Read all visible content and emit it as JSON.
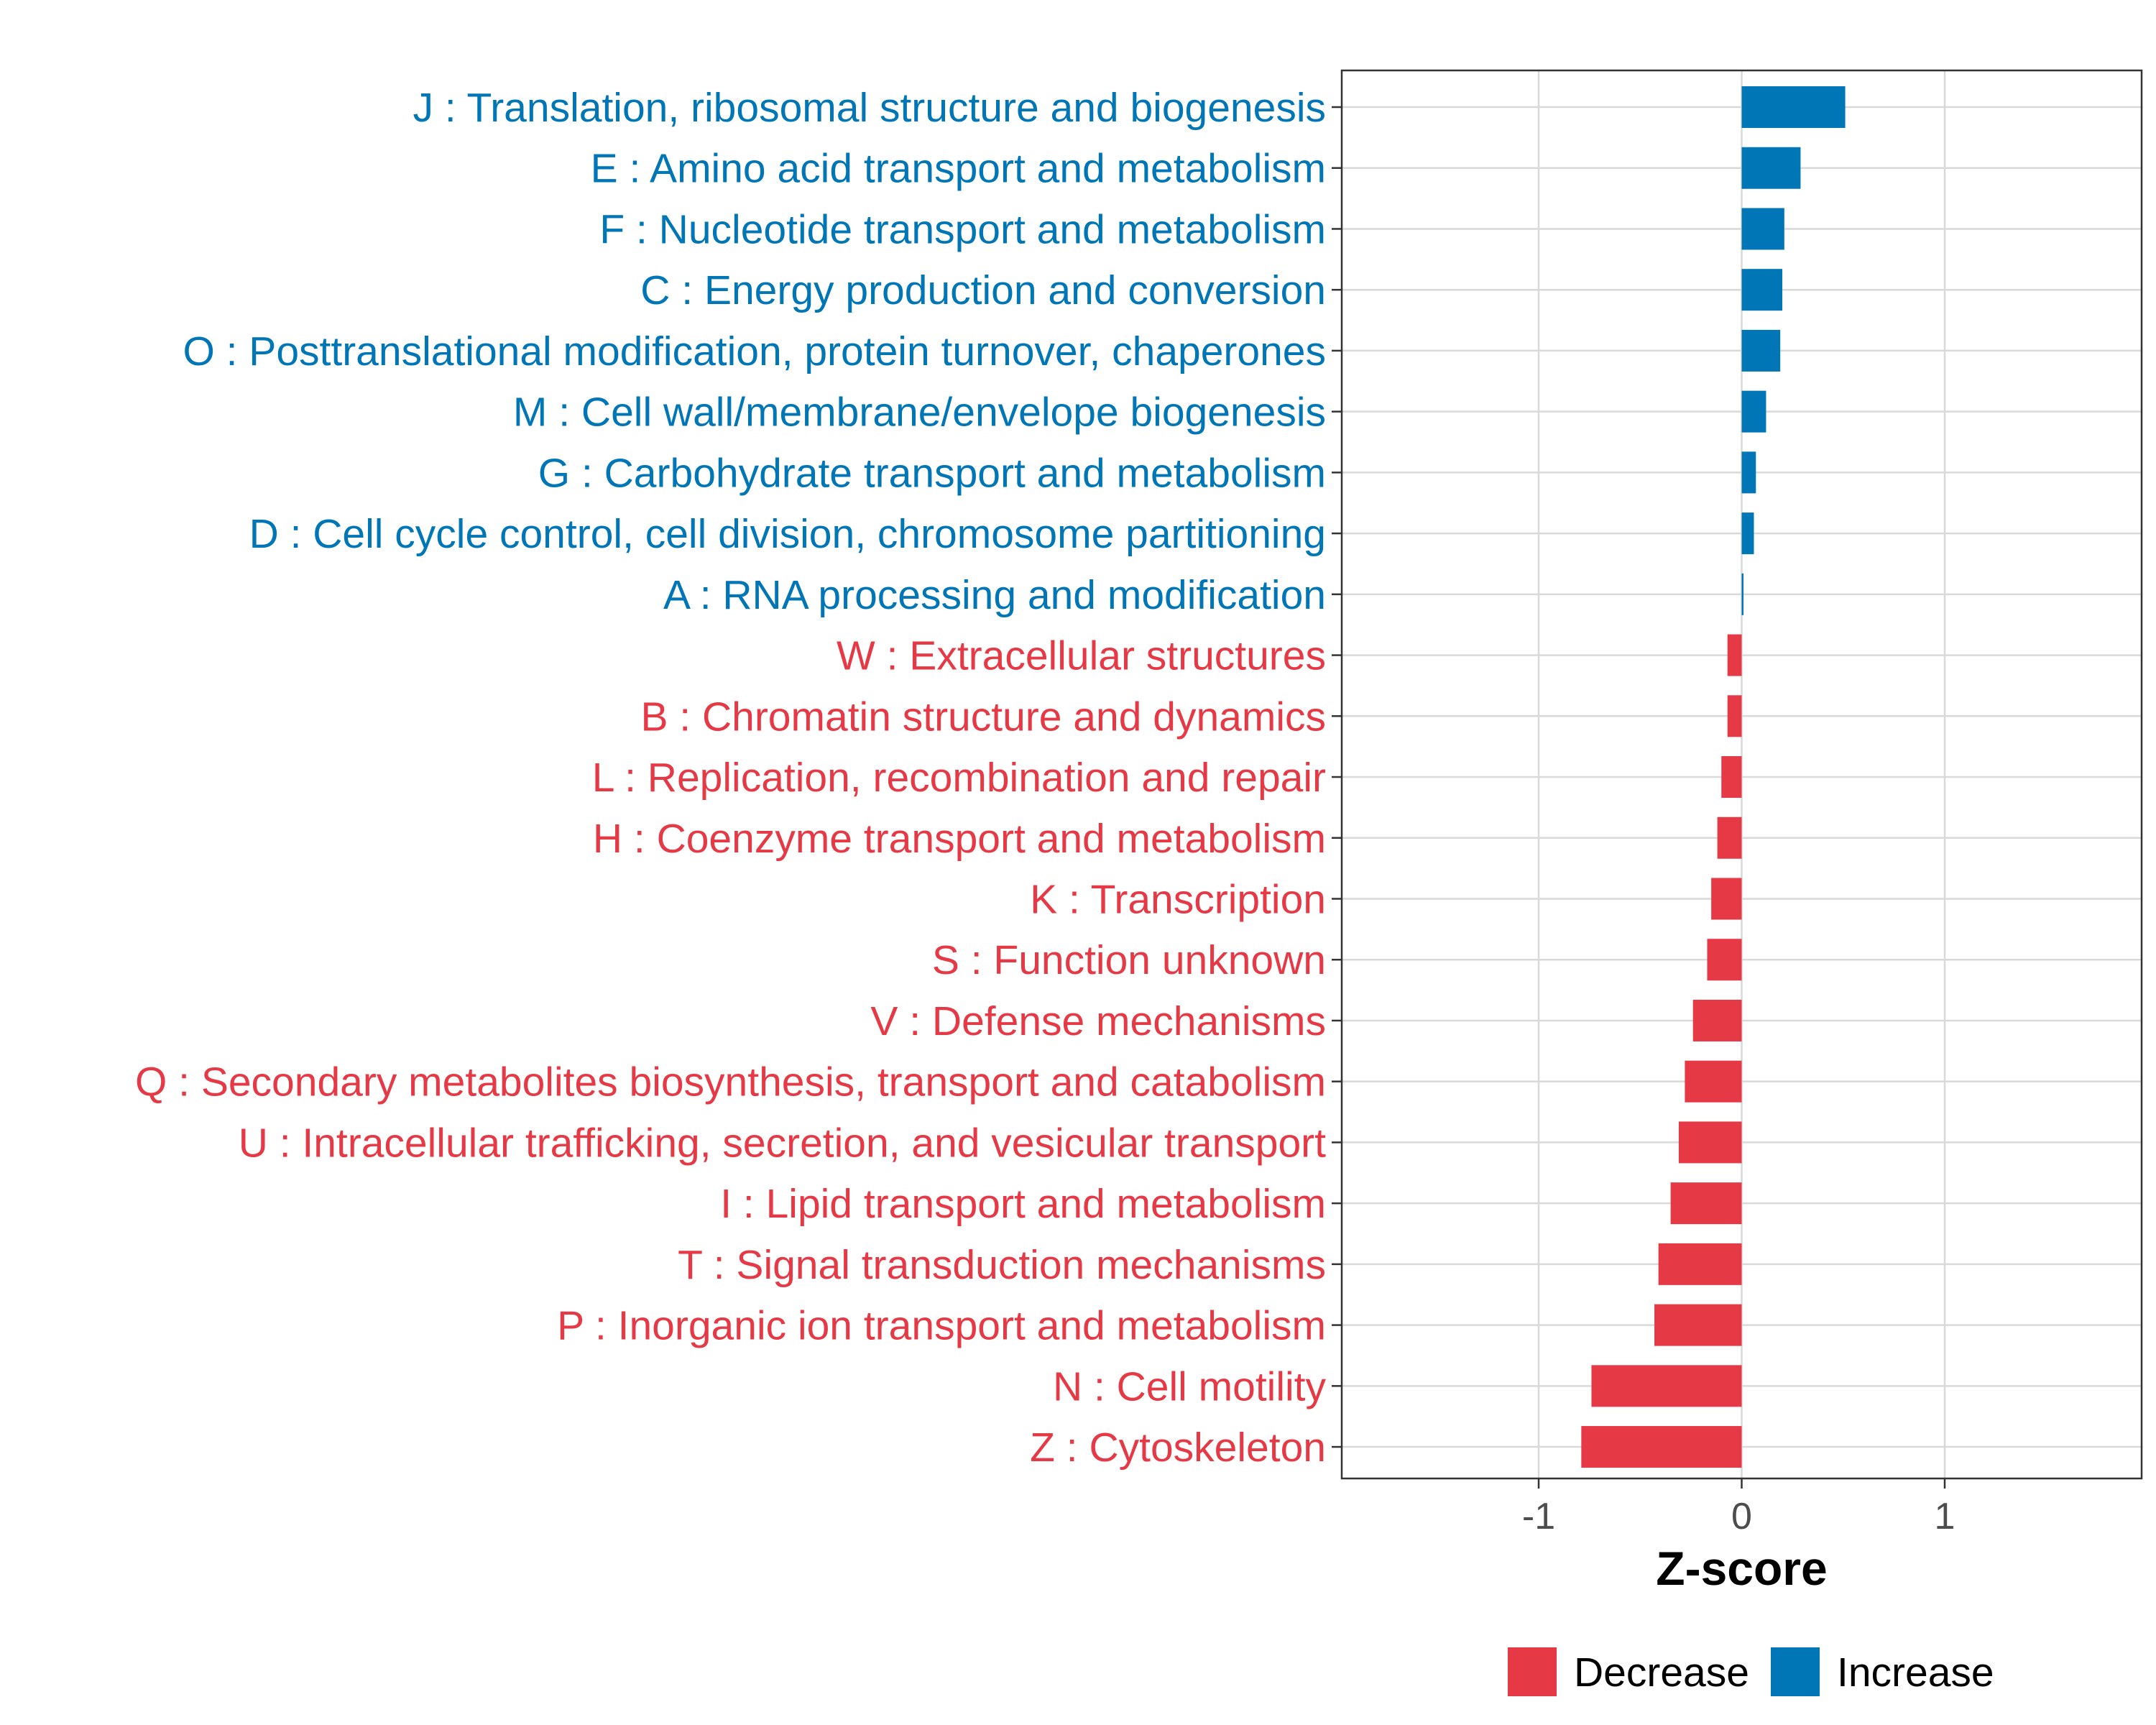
{
  "chart_data": {
    "type": "bar",
    "orientation": "horizontal",
    "title": "",
    "xlabel": "Z-score",
    "ylabel": "",
    "xlim": [
      -1.97,
      1.97
    ],
    "xticks": [
      -1,
      0,
      1
    ],
    "xtick_labels": [
      "-1",
      "0",
      "1"
    ],
    "grid": true,
    "colors": {
      "Decrease": "#e63946",
      "Increase": "#0076b6"
    },
    "legend": {
      "position": "bottom",
      "items": [
        {
          "label": "Decrease",
          "color": "#e63946"
        },
        {
          "label": "Increase",
          "color": "#0076b6"
        }
      ]
    },
    "categories": [
      "J : Translation, ribosomal structure and biogenesis",
      "E : Amino acid transport and metabolism",
      "F : Nucleotide transport and metabolism",
      "C : Energy production and conversion",
      "O : Posttranslational modification, protein turnover, chaperones",
      "M : Cell wall/membrane/envelope biogenesis",
      "G : Carbohydrate transport and metabolism",
      "D : Cell cycle control, cell division, chromosome partitioning",
      "A : RNA processing and modification",
      "W : Extracellular structures",
      "B : Chromatin structure and dynamics",
      "L : Replication, recombination and repair",
      "H : Coenzyme transport and metabolism",
      "K : Transcription",
      "S : Function unknown",
      "V : Defense mechanisms",
      "Q : Secondary metabolites biosynthesis, transport and catabolism",
      "U : Intracellular trafficking, secretion, and vesicular transport",
      "I : Lipid transport and metabolism",
      "T : Signal transduction mechanisms",
      "P : Inorganic ion transport and metabolism",
      "N : Cell motility",
      "Z : Cytoskeleton"
    ],
    "values": [
      0.51,
      0.29,
      0.21,
      0.2,
      0.19,
      0.12,
      0.07,
      0.06,
      0.005,
      -0.07,
      -0.07,
      -0.1,
      -0.12,
      -0.15,
      -0.17,
      -0.24,
      -0.28,
      -0.31,
      -0.35,
      -0.41,
      -0.43,
      -0.74,
      -0.79
    ],
    "groups": [
      "Increase",
      "Increase",
      "Increase",
      "Increase",
      "Increase",
      "Increase",
      "Increase",
      "Increase",
      "Increase",
      "Decrease",
      "Decrease",
      "Decrease",
      "Decrease",
      "Decrease",
      "Decrease",
      "Decrease",
      "Decrease",
      "Decrease",
      "Decrease",
      "Decrease",
      "Decrease",
      "Decrease",
      "Decrease"
    ]
  }
}
